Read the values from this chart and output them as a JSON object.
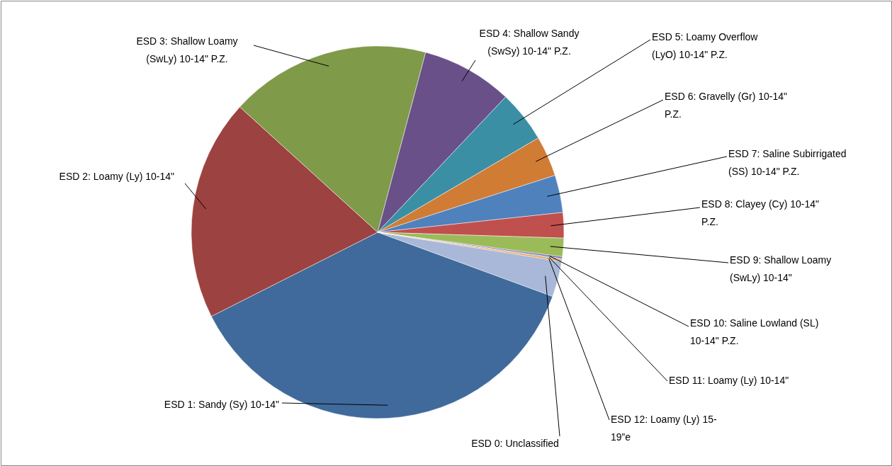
{
  "chart_data": {
    "type": "pie",
    "categories": [
      "ESD 0: Unclassified",
      "ESD 1: Sandy (Sy) 10-14\"",
      "ESD 2: Loamy (Ly) 10-14\"",
      "ESD 3: Shallow Loamy (SwLy) 10-14\" P.Z.",
      "ESD 4: Shallow Sandy (SwSy) 10-14\" P.Z.",
      "ESD 5: Loamy Overflow (LyO) 10-14\" P.Z.",
      "ESD 6: Gravelly (Gr) 10-14\" P.Z.",
      "ESD 7: Saline Subirrigated (SS) 10-14\" P.Z.",
      "ESD 8: Clayey (Cy) 10-14\" P.Z.",
      "ESD 9: Shallow Loamy (SwLy) 10-14\"",
      "ESD 10: Saline Lowland (SL) 10-14\" P.Z.",
      "ESD 11: Loamy (Ly) 10-14\"",
      "ESD 12: Loamy (Ly) 15-19”e"
    ],
    "values": [
      3.1,
      36.95,
      19.2,
      17.4,
      7.9,
      4.5,
      3.5,
      3.25,
      2.2,
      1.6,
      0.15,
      0.1,
      0.15
    ],
    "colors": [
      "#a9b8d8",
      "#3f6a9b",
      "#9c4240",
      "#7f9a48",
      "#6a5089",
      "#3a8fa5",
      "#d07c35",
      "#4f81bd",
      "#c0504d",
      "#9bbb59",
      "#8064a2",
      "#4bacc6",
      "#f79646"
    ]
  }
}
